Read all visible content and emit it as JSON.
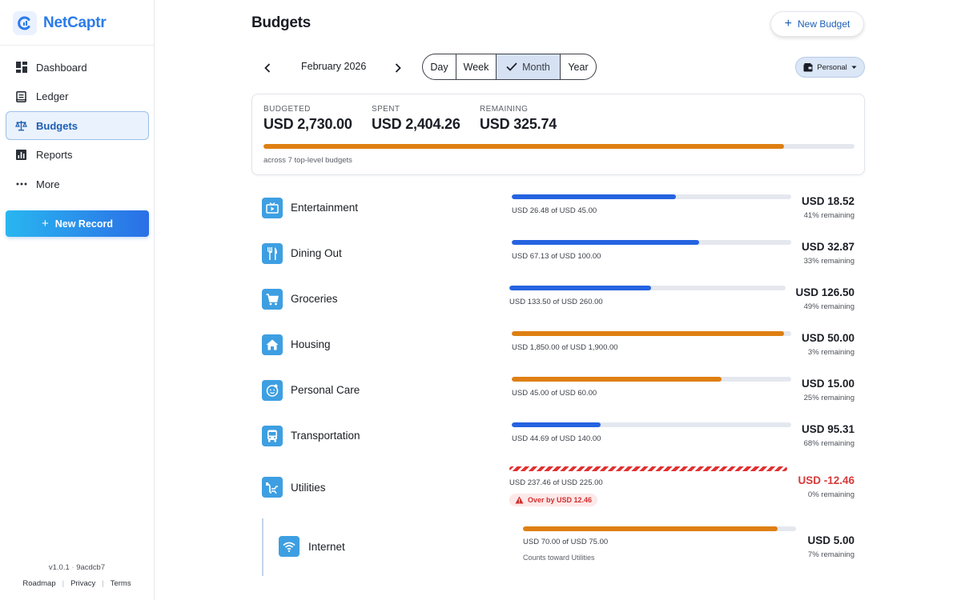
{
  "app": {
    "name": "NetCaptr"
  },
  "sidebar": {
    "items": [
      {
        "label": "Dashboard",
        "icon": "dashboard-icon"
      },
      {
        "label": "Ledger",
        "icon": "ledger-icon"
      },
      {
        "label": "Budgets",
        "icon": "scale-icon",
        "active": true
      },
      {
        "label": "Reports",
        "icon": "chart-icon"
      },
      {
        "label": "More",
        "icon": "more-icon"
      }
    ],
    "new_record_label": "New Record",
    "version": "v1.0.1",
    "build": "9acdcb7",
    "links": [
      "Roadmap",
      "Privacy",
      "Terms"
    ]
  },
  "header": {
    "title": "Budgets",
    "new_budget_label": "New Budget"
  },
  "period": {
    "label": "February 2026",
    "tabs": [
      "Day",
      "Week",
      "Month",
      "Year"
    ],
    "selected": "Month",
    "profile": "Personal"
  },
  "summary": {
    "budgeted_label": "BUDGETED",
    "budgeted_value": "USD 2,730.00",
    "spent_label": "SPENT",
    "spent_value": "USD 2,404.26",
    "remaining_label": "REMAINING",
    "remaining_value": "USD 325.74",
    "spent_fraction": 0.881,
    "note": "across 7 top-level budgets"
  },
  "budgets": [
    {
      "name": "Entertainment",
      "icon": "tv-icon",
      "progress_text": "USD 26.48 of USD 45.00",
      "fraction": 0.588,
      "status": "blue",
      "remaining": "USD 18.52",
      "remaining_pct": "41% remaining"
    },
    {
      "name": "Dining Out",
      "icon": "utensils-icon",
      "progress_text": "USD 67.13 of USD 100.00",
      "fraction": 0.671,
      "status": "blue",
      "remaining": "USD 32.87",
      "remaining_pct": "33% remaining"
    },
    {
      "name": "Groceries",
      "icon": "cart-icon",
      "progress_text": "USD 133.50 of USD 260.00",
      "fraction": 0.513,
      "status": "blue",
      "remaining": "USD 126.50",
      "remaining_pct": "49% remaining"
    },
    {
      "name": "Housing",
      "icon": "house-icon",
      "progress_text": "USD 1,850.00 of USD 1,900.00",
      "fraction": 0.974,
      "status": "orange",
      "remaining": "USD 50.00",
      "remaining_pct": "3% remaining"
    },
    {
      "name": "Personal Care",
      "icon": "face-icon",
      "progress_text": "USD 45.00 of USD 60.00",
      "fraction": 0.75,
      "status": "orange",
      "remaining": "USD 15.00",
      "remaining_pct": "25% remaining"
    },
    {
      "name": "Transportation",
      "icon": "bus-icon",
      "progress_text": "USD 44.69 of USD 140.00",
      "fraction": 0.319,
      "status": "blue",
      "remaining": "USD 95.31",
      "remaining_pct": "68% remaining"
    },
    {
      "name": "Utilities",
      "icon": "utility-icon",
      "progress_text": "USD 237.46 of USD 225.00",
      "fraction": 1.0,
      "status": "over",
      "remaining": "USD -12.46",
      "remaining_pct": "0% remaining",
      "over_text": "Over by USD 12.46"
    }
  ],
  "sub_budgets": [
    {
      "name": "Internet",
      "icon": "wifi-icon",
      "progress_text": "USD 70.00 of USD 75.00",
      "fraction": 0.933,
      "status": "orange",
      "remaining": "USD 5.00",
      "remaining_pct": "7% remaining",
      "note": "Counts toward Utilities"
    }
  ],
  "colors": {
    "accent": "#2b7bea",
    "bar_blue": "#2563e0",
    "bar_orange": "#de7f12",
    "over_red": "#e03131",
    "icon_bg": "#3d9fe2"
  }
}
